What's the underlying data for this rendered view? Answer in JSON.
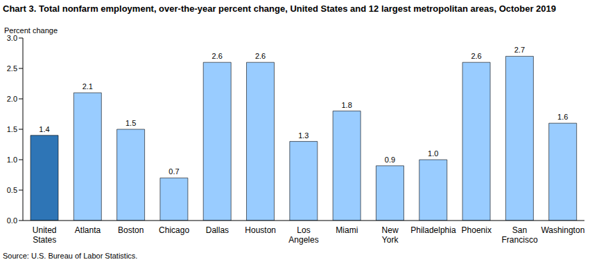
{
  "chart_data": {
    "type": "bar",
    "title": "Chart 3. Total nonfarm employment, over-the-year percent change, United States and 12 largest metropolitan areas, October 2019",
    "ylabel": "Percent change",
    "source": "Source: U.S. Bureau of Labor Statistics.",
    "categories": [
      "United States",
      "Atlanta",
      "Boston",
      "Chicago",
      "Dallas",
      "Houston",
      "Los Angeles",
      "Miami",
      "New York",
      "Philadelphia",
      "Phoenix",
      "San Francisco",
      "Washington"
    ],
    "values": [
      1.4,
      2.1,
      1.5,
      0.7,
      2.6,
      2.6,
      1.3,
      1.8,
      0.9,
      1.0,
      2.6,
      2.7,
      1.6
    ],
    "value_labels": [
      "1.4",
      "2.1",
      "1.5",
      "0.7",
      "2.6",
      "2.6",
      "1.3",
      "1.8",
      "0.9",
      "1.0",
      "2.6",
      "2.7",
      "1.6"
    ],
    "colors": [
      "#2e75b6",
      "#99ccff",
      "#99ccff",
      "#99ccff",
      "#99ccff",
      "#99ccff",
      "#99ccff",
      "#99ccff",
      "#99ccff",
      "#99ccff",
      "#99ccff",
      "#99ccff",
      "#99ccff"
    ],
    "ylim": [
      0,
      3
    ],
    "yticks": [
      {
        "value": 0,
        "label": "0.0"
      },
      0.5,
      {
        "value": 1,
        "label": "1.0"
      },
      1.5,
      {
        "value": 2,
        "label": "2.0"
      },
      2.5,
      {
        "value": 3,
        "label": "3.0"
      }
    ],
    "data_labels": true,
    "grid": false
  }
}
